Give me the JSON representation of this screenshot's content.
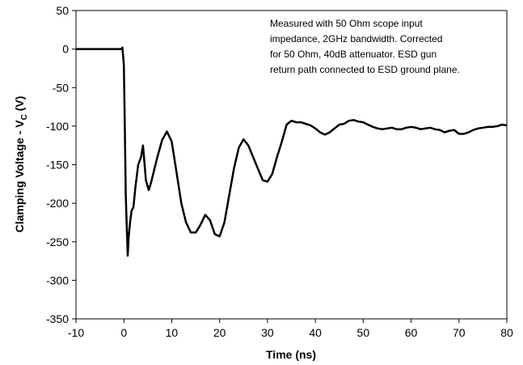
{
  "chart_data": {
    "type": "line",
    "xlabel": "Time (ns)",
    "ylabel_main": "Clamping Voltage - V",
    "ylabel_sub": "C",
    "ylabel_unit": " (V)",
    "xlim": [
      -10,
      80
    ],
    "ylim": [
      -350,
      50
    ],
    "xticks": [
      -10,
      0,
      10,
      20,
      30,
      40,
      50,
      60,
      70,
      80
    ],
    "yticks": [
      50,
      0,
      -50,
      -100,
      -150,
      -200,
      -250,
      -300,
      -350
    ],
    "x_tick_labels": [
      "-10",
      "0",
      "10",
      "20",
      "30",
      "40",
      "50",
      "60",
      "70",
      "80"
    ],
    "y_tick_labels": [
      "50",
      "0",
      "-50",
      "-100",
      "-150",
      "-200",
      "-250",
      "-300",
      "-350"
    ],
    "grid": false,
    "annotation": [
      "Measured with 50 Ohm scope input",
      "impedance, 2GHz bandwidth. Corrected",
      "for 50 Ohm, 40dB attenuator. ESD gun",
      "return path connected to ESD ground plane."
    ],
    "series": [
      {
        "color": "#000000",
        "x": [
          -10,
          -0.5,
          -0.3,
          0,
          0.2,
          0.4,
          0.6,
          0.8,
          1.0,
          1.3,
          1.6,
          2.0,
          2.4,
          3.0,
          3.6,
          4.0,
          4.6,
          5.2,
          5.6,
          6.0,
          7.0,
          8.0,
          9.0,
          10.0,
          11.0,
          12.0,
          13.0,
          14.0,
          15.0,
          16.0,
          17.0,
          18.0,
          19.0,
          20.0,
          21.0,
          22.0,
          23.0,
          24.0,
          25.0,
          26.0,
          27.0,
          28.0,
          29.0,
          30.0,
          31.0,
          32.0,
          33.0,
          34.0,
          35.0,
          36.0,
          37.0,
          38.0,
          39.0,
          40.0,
          41.0,
          42.0,
          43.0,
          44.0,
          45.0,
          46.0,
          47.0,
          48.0,
          49.0,
          50.0,
          51.0,
          52.0,
          53.0,
          54.0,
          55.0,
          56.0,
          57.0,
          58.0,
          59.0,
          60.0,
          61.0,
          62.0,
          63.0,
          64.0,
          65.0,
          66.0,
          67.0,
          68.0,
          69.0,
          70.0,
          71.0,
          72.0,
          73.0,
          74.0,
          75.0,
          76.0,
          77.0,
          78.0,
          79.0,
          80.0
        ],
        "y": [
          0,
          0,
          2,
          -20,
          -100,
          -190,
          -230,
          -268,
          -245,
          -225,
          -210,
          -205,
          -180,
          -150,
          -140,
          -125,
          -170,
          -183,
          -175,
          -165,
          -140,
          -118,
          -107,
          -120,
          -160,
          -200,
          -225,
          -238,
          -238,
          -228,
          -215,
          -222,
          -240,
          -243,
          -225,
          -190,
          -155,
          -128,
          -117,
          -125,
          -140,
          -155,
          -170,
          -172,
          -162,
          -140,
          -120,
          -98,
          -93,
          -95,
          -95,
          -97,
          -99,
          -103,
          -108,
          -111,
          -108,
          -103,
          -98,
          -97,
          -93,
          -92,
          -94,
          -95,
          -98,
          -101,
          -103,
          -104,
          -103,
          -102,
          -104,
          -104,
          -102,
          -101,
          -102,
          -104,
          -103,
          -102,
          -104,
          -105,
          -108,
          -106,
          -105,
          -110,
          -110,
          -108,
          -105,
          -103,
          -102,
          -101,
          -101,
          -100,
          -98,
          -99
        ]
      }
    ]
  }
}
